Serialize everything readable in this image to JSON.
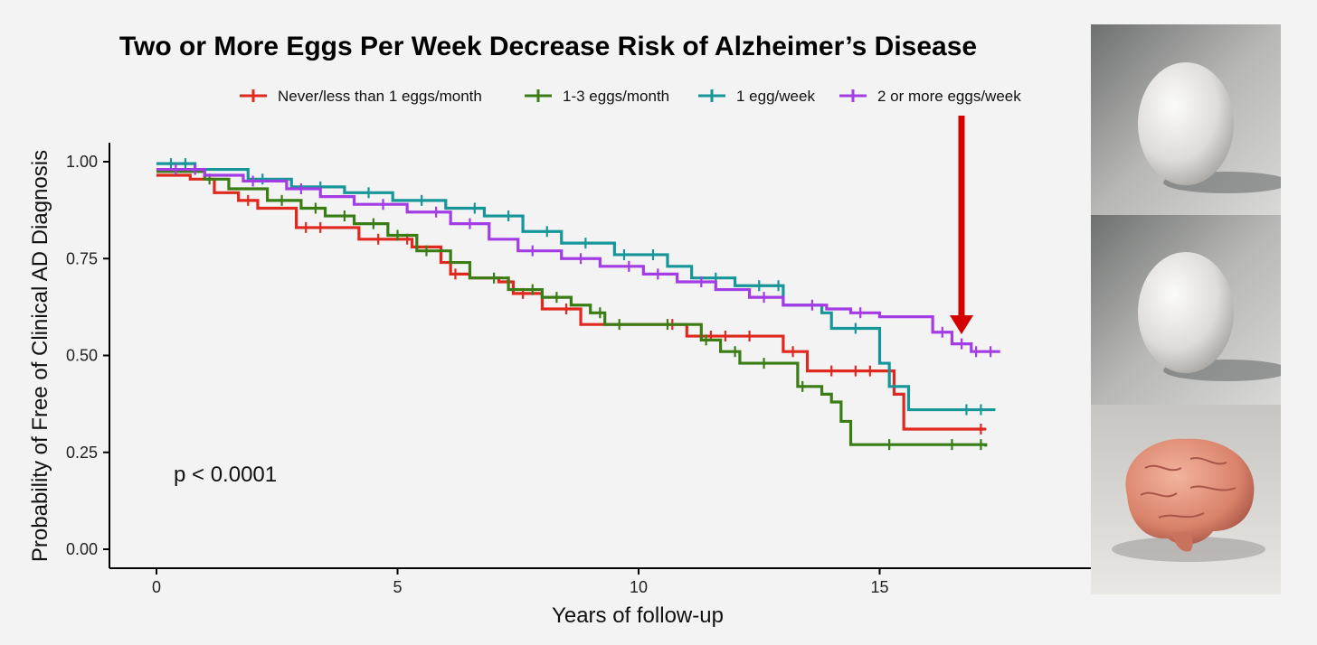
{
  "chart_data": {
    "type": "line",
    "subtype": "kaplan-meier step",
    "title": "Two or More Eggs Per Week Decrease Risk of Alzheimer’s Disease",
    "xlabel": "Years of follow-up",
    "ylabel": "Probability of Free of Clinical AD Diagnosis",
    "xlim": [
      -1.5,
      19.5
    ],
    "ylim": [
      -0.05,
      1.05
    ],
    "xticks": [
      0,
      5,
      10,
      15
    ],
    "yticks": [
      0,
      0.25,
      0.5,
      0.75,
      1.0
    ],
    "xtick_labels": [
      "0",
      "5",
      "10",
      "15"
    ],
    "ytick_labels": [
      "0.00",
      "0.25",
      "0.50",
      "0.75",
      "1.00"
    ],
    "annotation": "p < 0.0001",
    "legend_position": "top",
    "grid": false,
    "series": [
      {
        "name": "Never/less than 1 eggs/month",
        "color": "#e0281e",
        "x": [
          0,
          0.7,
          1.2,
          1.7,
          2.1,
          2.9,
          3.5,
          4.2,
          5.3,
          5.9,
          6.1,
          6.5,
          7.1,
          7.4,
          8.0,
          8.8,
          9.3,
          10.3,
          11.0,
          13.0,
          13.5,
          15.0,
          15.3,
          15.5,
          17.2
        ],
        "y": [
          0.965,
          0.955,
          0.92,
          0.9,
          0.88,
          0.83,
          0.83,
          0.8,
          0.78,
          0.74,
          0.71,
          0.7,
          0.69,
          0.66,
          0.62,
          0.58,
          0.58,
          0.58,
          0.55,
          0.51,
          0.46,
          0.46,
          0.4,
          0.31,
          0.31
        ],
        "censor": [
          1.9,
          3.1,
          3.4,
          4.6,
          5.2,
          6.2,
          7.3,
          7.6,
          8.5,
          10.7,
          11.5,
          11.8,
          12.3,
          13.2,
          14.0,
          14.5,
          14.8,
          17.1
        ]
      },
      {
        "name": "1-3 eggs/month",
        "color": "#3a7d14",
        "x": [
          0,
          1.0,
          1.5,
          2.3,
          3.0,
          3.5,
          4.1,
          4.8,
          5.4,
          6.1,
          6.5,
          7.3,
          8.0,
          8.6,
          9.0,
          9.3,
          10.0,
          11.3,
          11.7,
          12.1,
          13.3,
          13.8,
          14.0,
          14.2,
          14.4,
          17.2
        ],
        "y": [
          0.975,
          0.955,
          0.93,
          0.9,
          0.88,
          0.86,
          0.84,
          0.81,
          0.77,
          0.74,
          0.7,
          0.67,
          0.65,
          0.63,
          0.61,
          0.58,
          0.58,
          0.54,
          0.51,
          0.48,
          0.42,
          0.4,
          0.38,
          0.33,
          0.27,
          0.265
        ],
        "censor": [
          1.1,
          2.6,
          3.3,
          3.9,
          4.5,
          5.0,
          5.6,
          7.0,
          7.8,
          8.3,
          9.2,
          9.6,
          10.6,
          11.4,
          12.0,
          12.6,
          13.4,
          15.2,
          16.5,
          17.1
        ]
      },
      {
        "name": "1 egg/week",
        "color": "#17969a",
        "x": [
          0,
          0.8,
          1.9,
          2.8,
          3.9,
          4.9,
          6.0,
          6.8,
          7.6,
          8.4,
          9.5,
          10.6,
          11.1,
          12.0,
          13.0,
          13.8,
          14.0,
          15.0,
          15.2,
          15.6,
          16.2,
          17.4
        ],
        "y": [
          0.995,
          0.98,
          0.955,
          0.935,
          0.92,
          0.9,
          0.88,
          0.86,
          0.82,
          0.79,
          0.76,
          0.73,
          0.7,
          0.68,
          0.63,
          0.61,
          0.57,
          0.48,
          0.42,
          0.36,
          0.36,
          0.36
        ],
        "censor": [
          0.3,
          0.6,
          2.2,
          3.4,
          4.4,
          5.5,
          6.6,
          7.3,
          8.1,
          8.9,
          9.7,
          10.3,
          11.6,
          12.5,
          12.9,
          14.5,
          16.8,
          17.1
        ]
      },
      {
        "name": "2 or more eggs/week",
        "color": "#a43ce6",
        "x": [
          0,
          1.0,
          1.8,
          2.7,
          3.4,
          4.1,
          5.2,
          6.1,
          6.9,
          7.5,
          8.4,
          9.2,
          10.1,
          10.8,
          11.6,
          12.3,
          13.0,
          13.9,
          14.4,
          15.0,
          16.1,
          16.5,
          16.9,
          17.5
        ],
        "y": [
          0.98,
          0.965,
          0.95,
          0.93,
          0.91,
          0.89,
          0.87,
          0.84,
          0.8,
          0.77,
          0.75,
          0.73,
          0.71,
          0.69,
          0.67,
          0.65,
          0.63,
          0.62,
          0.61,
          0.6,
          0.56,
          0.53,
          0.51,
          0.51
        ],
        "censor": [
          0.4,
          0.8,
          2.0,
          3.0,
          4.7,
          5.8,
          6.5,
          7.8,
          8.8,
          9.8,
          10.4,
          11.3,
          12.6,
          13.6,
          14.6,
          16.3,
          16.7,
          17.0,
          17.3
        ]
      }
    ]
  },
  "figure": {
    "colors": {
      "background": "#f3f3f3",
      "arrow": "#d40000",
      "axis": "#000000"
    },
    "side_images": [
      {
        "name": "egg-photo-top",
        "depicts": "white egg"
      },
      {
        "name": "egg-photo-middle",
        "depicts": "white egg"
      },
      {
        "name": "brain-photo",
        "depicts": "brain model"
      }
    ]
  }
}
